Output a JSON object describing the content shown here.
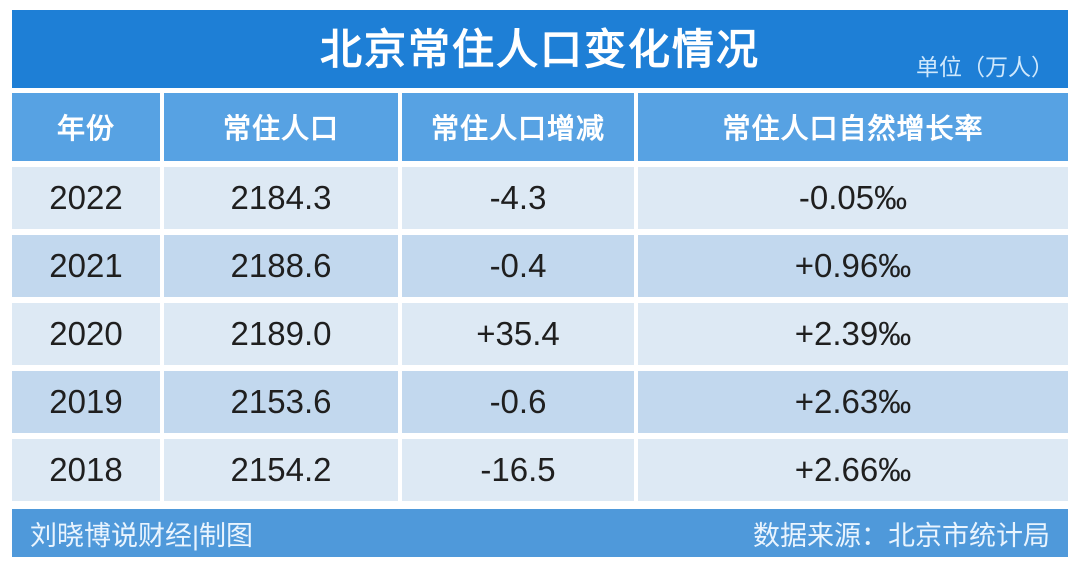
{
  "header": {
    "title": "北京常住人口变化情况",
    "unit_label": "单位（万人）"
  },
  "chart_data": {
    "type": "table",
    "title": "北京常住人口变化情况",
    "unit": "万人",
    "columns": [
      "年份",
      "常住人口",
      "常住人口增减",
      "常住人口自然增长率"
    ],
    "rows": [
      [
        "2022",
        "2184.3",
        "-4.3",
        "-0.05‰"
      ],
      [
        "2021",
        "2188.6",
        "-0.4",
        "+0.96‰"
      ],
      [
        "2020",
        "2189.0",
        "+35.4",
        "+2.39‰"
      ],
      [
        "2019",
        "2153.6",
        "-0.6",
        "+2.63‰"
      ],
      [
        "2018",
        "2154.2",
        "-16.5",
        "+2.66‰"
      ]
    ]
  },
  "footer": {
    "left": "刘晓博说财经|制图",
    "right": "数据来源：北京市统计局"
  },
  "colors": {
    "title_bar": "#1e7fd6",
    "table_header": "#57a2e3",
    "row_light": "#dde9f4",
    "row_dark": "#c2d8ee",
    "footer_bar": "#4f99da",
    "text_dark": "#1f1f1f",
    "unit_text": "#cfe8fc",
    "white": "#ffffff"
  }
}
